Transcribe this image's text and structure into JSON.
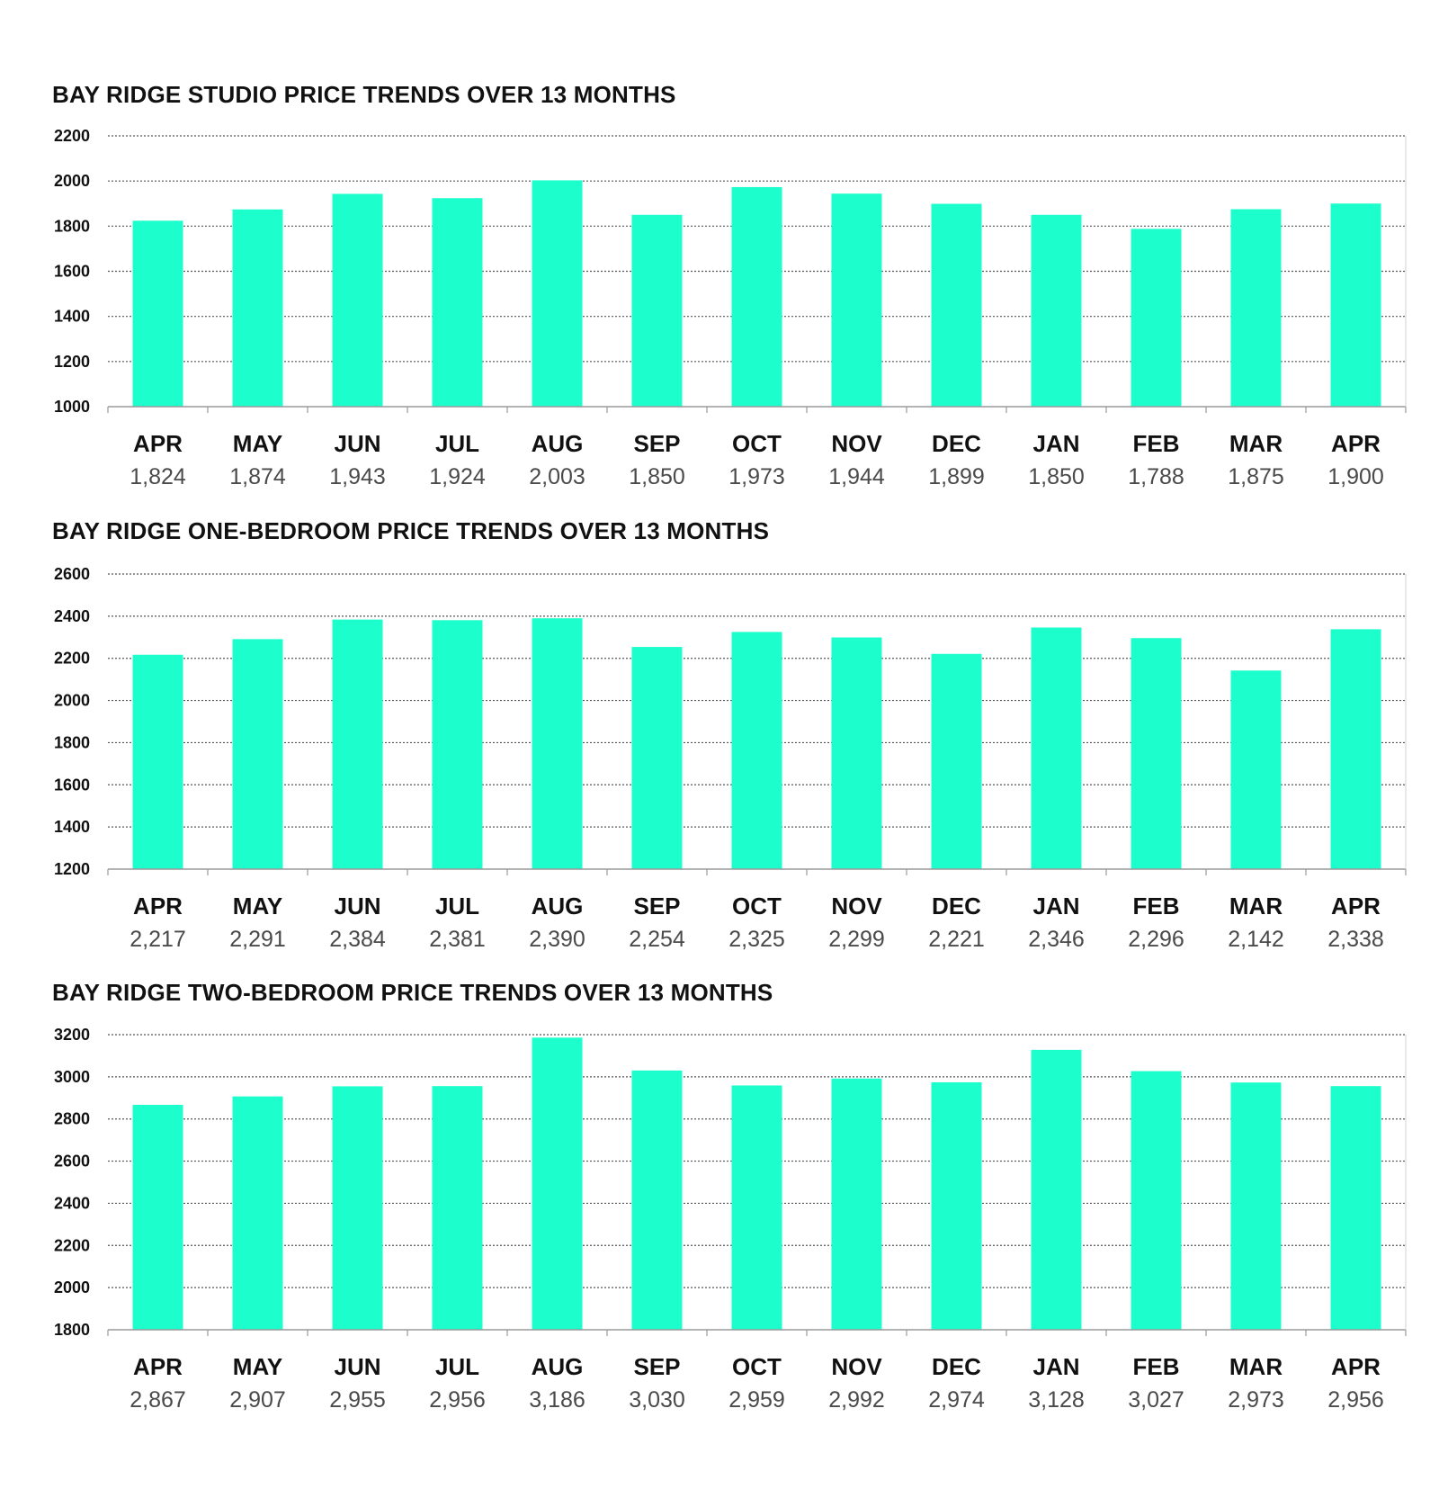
{
  "colors": {
    "bar": "#1cffcc",
    "grid": "#555555",
    "axis": "#9a9a9a",
    "text": "#111111",
    "value_text": "#4a4a4a"
  },
  "chart_data": [
    {
      "type": "bar",
      "title": "BAY RIDGE STUDIO PRICE TRENDS OVER 13 MONTHS",
      "categories": [
        "APR",
        "MAY",
        "JUN",
        "JUL",
        "AUG",
        "SEP",
        "OCT",
        "NOV",
        "DEC",
        "JAN",
        "FEB",
        "MAR",
        "APR"
      ],
      "values": [
        1824,
        1874,
        1943,
        1924,
        2003,
        1850,
        1973,
        1944,
        1899,
        1850,
        1788,
        1875,
        1900
      ],
      "value_labels": [
        "1,824",
        "1,874",
        "1,943",
        "1,924",
        "2,003",
        "1,850",
        "1,973",
        "1,944",
        "1,899",
        "1,850",
        "1,788",
        "1,875",
        "1,900"
      ],
      "ylim": [
        1000,
        2200
      ],
      "yticks": [
        1000,
        1200,
        1400,
        1600,
        1800,
        2000,
        2200
      ],
      "grid": true,
      "xlabel": "",
      "ylabel": ""
    },
    {
      "type": "bar",
      "title": "BAY RIDGE ONE-BEDROOM PRICE TRENDS OVER 13 MONTHS",
      "categories": [
        "APR",
        "MAY",
        "JUN",
        "JUL",
        "AUG",
        "SEP",
        "OCT",
        "NOV",
        "DEC",
        "JAN",
        "FEB",
        "MAR",
        "APR"
      ],
      "values": [
        2217,
        2291,
        2384,
        2381,
        2390,
        2254,
        2325,
        2299,
        2221,
        2346,
        2296,
        2142,
        2338
      ],
      "value_labels": [
        "2,217",
        "2,291",
        "2,384",
        "2,381",
        "2,390",
        "2,254",
        "2,325",
        "2,299",
        "2,221",
        "2,346",
        "2,296",
        "2,142",
        "2,338"
      ],
      "ylim": [
        1200,
        2600
      ],
      "yticks": [
        1200,
        1400,
        1600,
        1800,
        2000,
        2200,
        2400,
        2600
      ],
      "grid": true,
      "xlabel": "",
      "ylabel": ""
    },
    {
      "type": "bar",
      "title": "BAY RIDGE TWO-BEDROOM PRICE TRENDS OVER 13 MONTHS",
      "categories": [
        "APR",
        "MAY",
        "JUN",
        "JUL",
        "AUG",
        "SEP",
        "OCT",
        "NOV",
        "DEC",
        "JAN",
        "FEB",
        "MAR",
        "APR"
      ],
      "values": [
        2867,
        2907,
        2955,
        2956,
        3186,
        3030,
        2959,
        2992,
        2974,
        3128,
        3027,
        2973,
        2956
      ],
      "value_labels": [
        "2,867",
        "2,907",
        "2,955",
        "2,956",
        "3,186",
        "3,030",
        "2,959",
        "2,992",
        "2,974",
        "3,128",
        "3,027",
        "2,973",
        "2,956"
      ],
      "ylim": [
        1800,
        3200
      ],
      "yticks": [
        1800,
        2000,
        2200,
        2400,
        2600,
        2800,
        3000,
        3200
      ],
      "grid": true,
      "xlabel": "",
      "ylabel": ""
    }
  ]
}
